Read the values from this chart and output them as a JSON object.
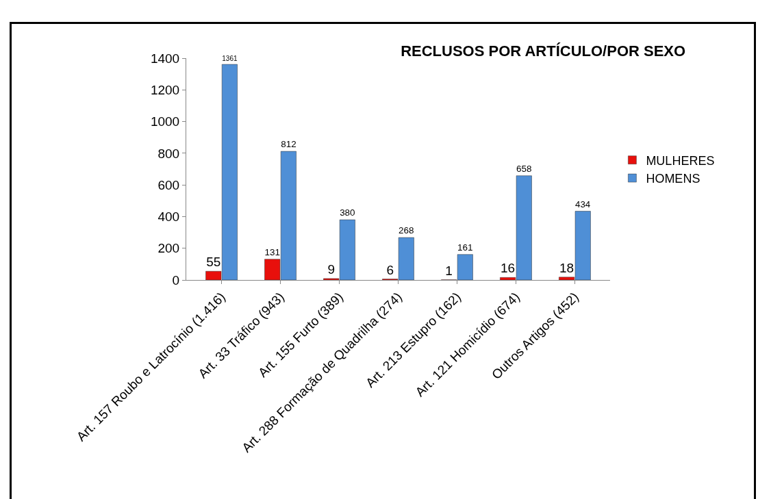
{
  "chart_data": {
    "type": "bar",
    "title": "RECLUSOS POR ARTÍCULO/POR SEXO",
    "categories": [
      "Art. 157 Roubo e Latrocínio (1.416)",
      "Art. 33 Tráfico (943)",
      "Art. 155 Furto (389)",
      "Art. 288 Formação de Quadrilha (274)",
      "Art. 213 Estupro (162)",
      "Art. 121 Homicídio (674)",
      "Outros Artigos (452)"
    ],
    "series": [
      {
        "name": "MULHERES",
        "color": "#e8100c",
        "values": [
          55,
          131,
          9,
          6,
          1,
          16,
          18
        ]
      },
      {
        "name": "HOMENS",
        "color": "#4f8fd6",
        "values": [
          1361,
          812,
          380,
          268,
          161,
          658,
          434
        ]
      }
    ],
    "ylim": [
      0,
      1400
    ],
    "yticks": [
      0,
      200,
      400,
      600,
      800,
      1000,
      1200,
      1400
    ],
    "grid": false,
    "legend": "right",
    "data_labels": true
  }
}
